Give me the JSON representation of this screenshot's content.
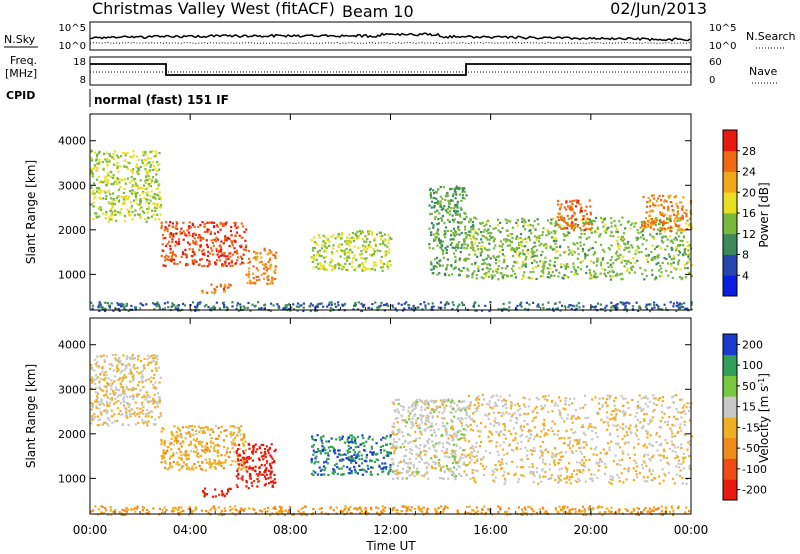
{
  "header": {
    "station": "Christmas Valley West (fitACF)",
    "beam": "Beam 10",
    "date": "02/Jun/2013"
  },
  "strip_labels": {
    "nsky": "N.Sky",
    "nsearch": "N.Search",
    "freq": "Freq.",
    "freq_unit": "[MHz]",
    "nave": "Nave",
    "cpid": "CPID",
    "cpid_value": "normal (fast) 151 IF"
  },
  "strip_ticks": {
    "noise_left": [
      "10^5",
      "10^0"
    ],
    "noise_right": [
      "10^5",
      "10^0"
    ],
    "freq_left": [
      "18",
      "8"
    ],
    "freq_right": [
      "60",
      "0"
    ]
  },
  "colors": {
    "power": [
      "#0a1ee0",
      "#2845b0",
      "#3a8a5a",
      "#78b83c",
      "#e8e020",
      "#f0a818",
      "#f06a14",
      "#e81a10"
    ],
    "velocity": [
      "#e81a10",
      "#f04a14",
      "#f08a1a",
      "#f0b024",
      "#c8c8c8",
      "#78c840",
      "#30a058",
      "#1a3ad0"
    ]
  },
  "chart_data": [
    {
      "type": "heatmap",
      "name_hint": "power",
      "x": {
        "ticks": [
          "00:00",
          "04:00",
          "08:00",
          "12:00",
          "16:00",
          "20:00",
          "00:00"
        ],
        "range_hours": [
          0,
          24
        ]
      },
      "ylabel": "Slant Range [km]",
      "ylim": [
        200,
        4600
      ],
      "yticks": [
        1000,
        2000,
        3000,
        4000
      ],
      "colorbar": {
        "label": "Power [dB]",
        "ticks": [
          4,
          8,
          12,
          16,
          20,
          24,
          28
        ],
        "range": [
          0,
          32
        ]
      },
      "regions": [
        {
          "t": [
            0.0,
            2.8
          ],
          "r": [
            2200,
            3800
          ],
          "v": 16
        },
        {
          "t": [
            2.8,
            6.2
          ],
          "r": [
            1200,
            2200
          ],
          "v": 28
        },
        {
          "t": [
            4.4,
            5.6
          ],
          "r": [
            600,
            800
          ],
          "v": 26
        },
        {
          "t": [
            6.2,
            7.4
          ],
          "r": [
            800,
            1600
          ],
          "v": 24
        },
        {
          "t": [
            8.8,
            12.0
          ],
          "r": [
            1100,
            2000
          ],
          "v": 16
        },
        {
          "t": [
            13.5,
            15.0
          ],
          "r": [
            1000,
            3000
          ],
          "v": 12
        },
        {
          "t": [
            15.0,
            24.0
          ],
          "r": [
            900,
            2300
          ],
          "v": 14
        },
        {
          "t": [
            18.6,
            20.0
          ],
          "r": [
            2000,
            2700
          ],
          "v": 26
        },
        {
          "t": [
            22.0,
            24.0
          ],
          "r": [
            2000,
            2800
          ],
          "v": 24
        },
        {
          "t": [
            0.0,
            24.0
          ],
          "r": [
            200,
            400
          ],
          "v": 8
        }
      ]
    },
    {
      "type": "heatmap",
      "name_hint": "velocity",
      "x": {
        "ticks": [
          "00:00",
          "04:00",
          "08:00",
          "12:00",
          "16:00",
          "20:00",
          "00:00"
        ],
        "range_hours": [
          0,
          24
        ],
        "label": "Time UT"
      },
      "ylabel": "Slant Range [km]",
      "ylim": [
        200,
        4600
      ],
      "yticks": [
        1000,
        2000,
        3000,
        4000
      ],
      "colorbar": {
        "label": "Velocity [m s^-1]",
        "ticks": [
          "200",
          "100",
          "50",
          "15",
          "-15",
          "-50",
          "-100",
          "-200"
        ],
        "range": [
          -250,
          250
        ]
      },
      "regions": [
        {
          "t": [
            0.0,
            2.8
          ],
          "r": [
            2200,
            3800
          ],
          "v": 0
        },
        {
          "t": [
            2.8,
            6.2
          ],
          "r": [
            1200,
            2200
          ],
          "v": -40
        },
        {
          "t": [
            5.8,
            7.4
          ],
          "r": [
            800,
            1800
          ],
          "v": -220
        },
        {
          "t": [
            4.4,
            5.6
          ],
          "r": [
            600,
            800
          ],
          "v": -220
        },
        {
          "t": [
            8.8,
            12.0
          ],
          "r": [
            1100,
            2000
          ],
          "v": 180
        },
        {
          "t": [
            12.0,
            15.0
          ],
          "r": [
            1000,
            2800
          ],
          "v": 30
        },
        {
          "t": [
            15.0,
            24.0
          ],
          "r": [
            900,
            2900
          ],
          "v": 0
        },
        {
          "t": [
            0.0,
            24.0
          ],
          "r": [
            200,
            400
          ],
          "v": -60
        }
      ]
    }
  ]
}
